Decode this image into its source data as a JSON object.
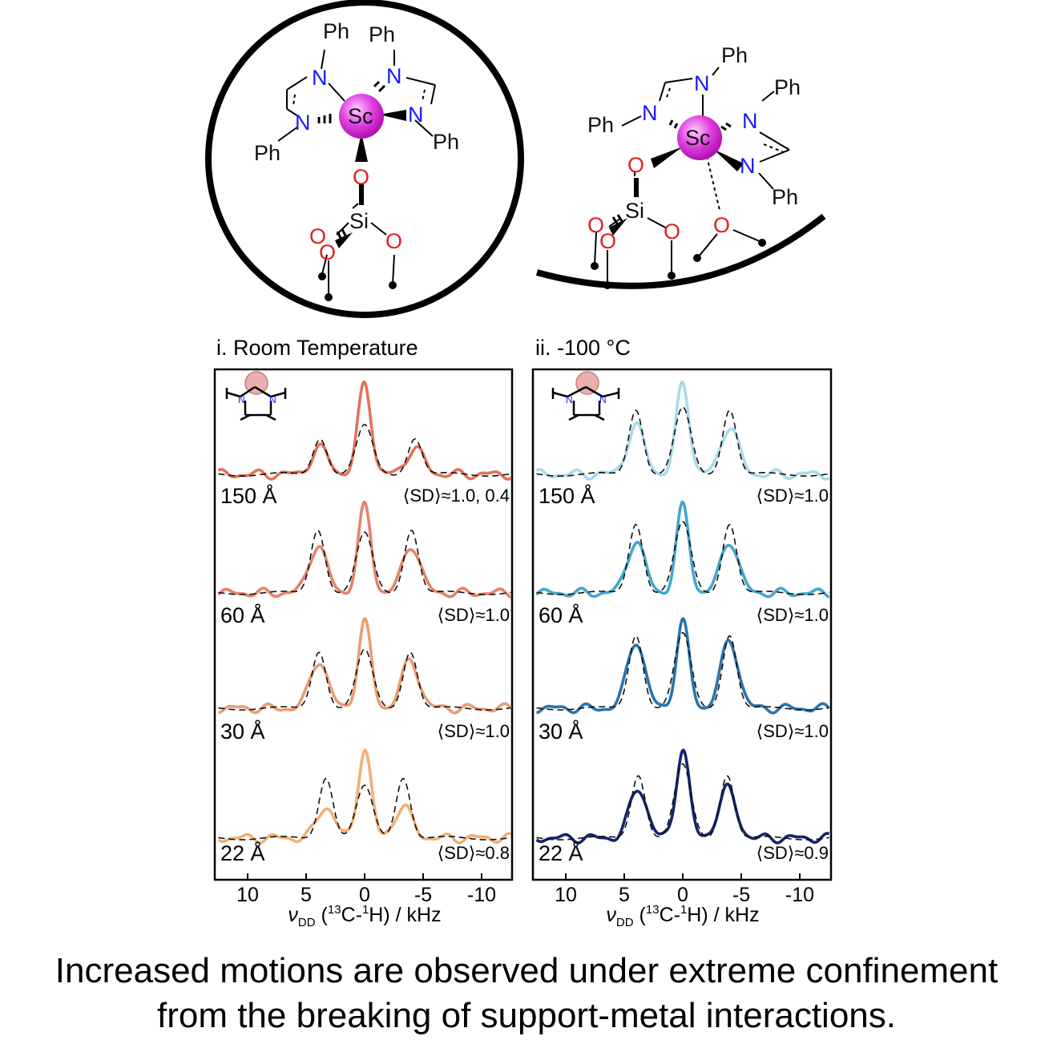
{
  "schemes": {
    "left": {
      "atoms": {
        "ph1": "Ph",
        "ph2": "Ph",
        "ph3": "Ph",
        "ph4": "Ph",
        "n1": "N",
        "n2": "N",
        "n3": "N",
        "n4": "N",
        "sc": "Sc",
        "o_top": "O",
        "si": "Si",
        "o_l1": "O",
        "o_l2": "O",
        "o_r": "O"
      }
    },
    "right": {
      "atoms": {
        "ph1": "Ph",
        "ph2": "Ph",
        "ph3": "Ph",
        "ph4": "Ph",
        "n1": "N",
        "n2": "N",
        "n3": "N",
        "n4": "N",
        "sc": "Sc",
        "o_sc": "O",
        "si": "Si",
        "o_l1": "O",
        "o_l2": "O",
        "o_r": "O",
        "o_far": "O"
      }
    }
  },
  "chart_data": [
    {
      "type": "line",
      "title": "i. Room Temperature",
      "xlabel": "νDD (13C-1H) / kHz",
      "x_ticks": [
        10,
        5,
        0,
        -5,
        -10
      ],
      "x_tick_labels": [
        "10",
        "5",
        "0",
        "-5",
        "-10"
      ],
      "xlim": [
        12.5,
        -12.8
      ],
      "inset_labels": {
        "n_left": "N",
        "n_right": "N"
      },
      "series": [
        {
          "label": "150 Å",
          "order_parameter": "⟨SD⟩≈1.0, 0.4",
          "color": "#e27358",
          "peaks": [
            {
              "position_khz": 0,
              "exp_height": 1.0,
              "sim_height": 0.55
            },
            {
              "position_khz": 3.8,
              "exp_height": 0.28,
              "sim_height": 0.42
            },
            {
              "position_khz": -4.3,
              "exp_height": 0.28,
              "sim_height": 0.42
            }
          ]
        },
        {
          "label": "60 Å",
          "order_parameter": "⟨SD⟩≈1.0",
          "color": "#e4836a",
          "peaks": [
            {
              "position_khz": 0,
              "exp_height": 1.0,
              "sim_height": 0.72
            },
            {
              "position_khz": 4.0,
              "exp_height": 0.55,
              "sim_height": 0.78
            },
            {
              "position_khz": -4.0,
              "exp_height": 0.55,
              "sim_height": 0.78
            }
          ]
        },
        {
          "label": "30 Å",
          "order_parameter": "⟨SD⟩≈1.0",
          "color": "#eb9c72",
          "peaks": [
            {
              "position_khz": 0,
              "exp_height": 1.0,
              "sim_height": 0.7
            },
            {
              "position_khz": 3.9,
              "exp_height": 0.55,
              "sim_height": 0.7
            },
            {
              "position_khz": -3.9,
              "exp_height": 0.55,
              "sim_height": 0.7
            }
          ]
        },
        {
          "label": "22 Å",
          "order_parameter": "⟨SD⟩≈0.8",
          "color": "#f0b074",
          "peaks": [
            {
              "position_khz": 0,
              "exp_height": 1.0,
              "sim_height": 0.6
            },
            {
              "position_khz": 3.3,
              "exp_height": 0.35,
              "sim_height": 0.72
            },
            {
              "position_khz": -3.3,
              "exp_height": 0.35,
              "sim_height": 0.72
            }
          ]
        }
      ]
    },
    {
      "type": "line",
      "title": "ii. -100 °C",
      "xlabel": "νDD (13C-1H) / kHz",
      "x_ticks": [
        10,
        5,
        0,
        -5,
        -10
      ],
      "x_tick_labels": [
        "10",
        "5",
        "0",
        "-5",
        "-10"
      ],
      "xlim": [
        12.5,
        -12.8
      ],
      "inset_labels": {
        "n_left": "N",
        "n_right": "N"
      },
      "series": [
        {
          "label": "150 Å",
          "order_parameter": "⟨SD⟩≈1.0",
          "color": "#a9dbe9",
          "peaks": [
            {
              "position_khz": 0,
              "exp_height": 1.0,
              "sim_height": 0.75
            },
            {
              "position_khz": 4.0,
              "exp_height": 0.52,
              "sim_height": 0.75
            },
            {
              "position_khz": -4.0,
              "exp_height": 0.52,
              "sim_height": 0.75
            }
          ]
        },
        {
          "label": "60 Å",
          "order_parameter": "⟨SD⟩≈1.0",
          "color": "#44a6cc",
          "peaks": [
            {
              "position_khz": 0,
              "exp_height": 1.0,
              "sim_height": 0.85
            },
            {
              "position_khz": 4.0,
              "exp_height": 0.6,
              "sim_height": 0.85
            },
            {
              "position_khz": -4.0,
              "exp_height": 0.6,
              "sim_height": 0.85
            }
          ]
        },
        {
          "label": "30 Å",
          "order_parameter": "⟨SD⟩≈1.0",
          "color": "#2a73ab",
          "peaks": [
            {
              "position_khz": 0,
              "exp_height": 1.0,
              "sim_height": 0.9
            },
            {
              "position_khz": 4.0,
              "exp_height": 0.78,
              "sim_height": 0.9
            },
            {
              "position_khz": -4.0,
              "exp_height": 0.78,
              "sim_height": 0.9
            }
          ]
        },
        {
          "label": "22 Å",
          "order_parameter": "⟨SD⟩≈0.9",
          "color": "#14246b",
          "peaks": [
            {
              "position_khz": 0,
              "exp_height": 1.0,
              "sim_height": 0.85
            },
            {
              "position_khz": 3.8,
              "exp_height": 0.55,
              "sim_height": 0.75
            },
            {
              "position_khz": -3.8,
              "exp_height": 0.55,
              "sim_height": 0.75
            }
          ]
        }
      ]
    }
  ],
  "caption": {
    "line1": "Increased motions are observed under extreme confinement",
    "line2": "from the breaking of support-metal interactions."
  }
}
